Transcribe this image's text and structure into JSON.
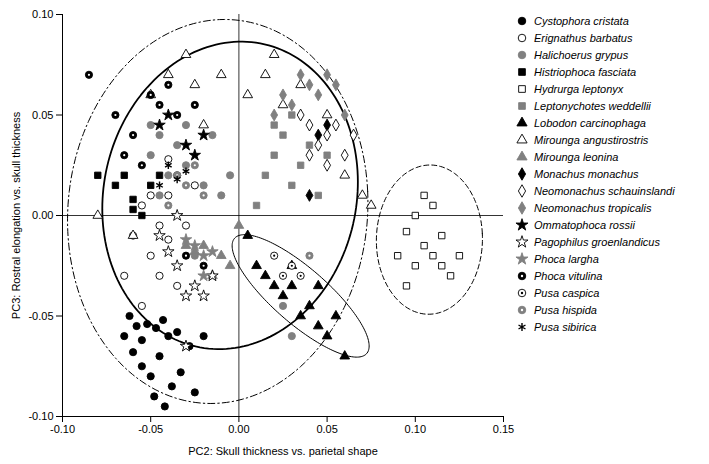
{
  "chart_data": {
    "type": "scatter",
    "x_label": "PC2: Skull thickness vs. parietal shape",
    "y_label": "PC3: Rostral elongation vs. skull thickness",
    "xlim": [
      -0.1,
      0.15
    ],
    "ylim": [
      -0.1,
      0.1
    ],
    "xticks": [
      {
        "value": -0.1,
        "label": "-0.10"
      },
      {
        "value": -0.05,
        "label": "-0.05"
      },
      {
        "value": 0,
        "label": "0.00"
      },
      {
        "value": 0.05,
        "label": "0.05"
      },
      {
        "value": 0.1,
        "label": "0.10"
      },
      {
        "value": 0.15,
        "label": "0.15"
      }
    ],
    "yticks": [
      {
        "value": -0.1,
        "label": "-0.10"
      },
      {
        "value": -0.05,
        "label": "-0.05"
      },
      {
        "value": 0,
        "label": "0.00"
      },
      {
        "value": 0.05,
        "label": "0.05"
      },
      {
        "value": 0.1,
        "label": "0.10"
      }
    ],
    "grid": false,
    "legend": "right",
    "series": [
      {
        "name": "Cystophora cristata",
        "marker": "circle",
        "color": "#000000",
        "x": [
          -0.062,
          -0.058,
          -0.052,
          -0.047,
          -0.043,
          -0.04,
          -0.035,
          -0.06,
          -0.055,
          -0.05,
          -0.045,
          -0.048,
          -0.042,
          -0.038,
          -0.033,
          -0.028,
          -0.025,
          -0.02,
          -0.055,
          -0.065
        ],
        "y": [
          -0.05,
          -0.055,
          -0.054,
          -0.056,
          -0.052,
          -0.06,
          -0.058,
          -0.068,
          -0.075,
          -0.08,
          -0.07,
          -0.09,
          -0.095,
          -0.085,
          -0.078,
          -0.065,
          -0.088,
          -0.06,
          -0.062,
          -0.06
        ]
      },
      {
        "name": "Erignathus barbatus",
        "marker": "open-circle",
        "color": "#000000",
        "x": [
          -0.06,
          -0.055,
          -0.05,
          -0.045,
          -0.04,
          -0.035,
          -0.03,
          -0.055,
          -0.045,
          -0.04,
          -0.025,
          -0.05,
          -0.065,
          -0.035,
          -0.04
        ],
        "y": [
          -0.01,
          0.005,
          -0.02,
          -0.03,
          -0.012,
          0.02,
          -0.005,
          -0.045,
          -0.005,
          0.028,
          0.015,
          0.01,
          -0.03,
          -0.035,
          0.01
        ]
      },
      {
        "name": "Halichoerus grypus",
        "marker": "circle",
        "color": "#808080",
        "x": [
          -0.05,
          -0.045,
          -0.04,
          -0.035,
          -0.03,
          -0.02,
          -0.015,
          -0.025,
          -0.01,
          0.025,
          0.03,
          -0.045,
          -0.05,
          -0.03,
          -0.005
        ],
        "y": [
          0.03,
          0.04,
          0.02,
          0.035,
          0.025,
          0.015,
          0.04,
          -0.02,
          0.01,
          -0.045,
          -0.06,
          0.01,
          0.045,
          0.045,
          0.02
        ]
      },
      {
        "name": "Histriophoca fasciata",
        "marker": "square",
        "color": "#000000",
        "x": [
          -0.07,
          -0.065,
          -0.06,
          -0.055,
          -0.05,
          -0.08,
          -0.045,
          -0.06
        ],
        "y": [
          0.015,
          0.02,
          0.003,
          0.0,
          0.015,
          0.02,
          0.02,
          0.008
        ]
      },
      {
        "name": "Hydrurga leptonyx",
        "marker": "open-square",
        "color": "#000000",
        "x": [
          0.09,
          0.095,
          0.1,
          0.105,
          0.11,
          0.11,
          0.115,
          0.12,
          0.125,
          0.1,
          0.105,
          0.115,
          0.095
        ],
        "y": [
          -0.02,
          -0.008,
          0.0,
          -0.015,
          -0.02,
          0.005,
          -0.01,
          -0.03,
          -0.02,
          -0.025,
          0.01,
          -0.025,
          -0.035
        ]
      },
      {
        "name": "Leptonychotes weddellii",
        "marker": "square",
        "color": "#808080",
        "x": [
          0.015,
          0.02,
          0.025,
          0.03,
          0.035,
          0.04,
          0.045,
          0.02,
          0.05,
          0.01,
          0.03
        ],
        "y": [
          0.02,
          0.03,
          0.04,
          0.015,
          0.025,
          0.035,
          0.01,
          0.045,
          0.03,
          0.005,
          0.05
        ]
      },
      {
        "name": "Lobodon carcinophaga",
        "marker": "triangle",
        "color": "#000000",
        "x": [
          0.005,
          0.01,
          0.015,
          0.02,
          0.025,
          0.03,
          0.035,
          0.04,
          0.045,
          0.05,
          0.055,
          0.06,
          0.045,
          0.03
        ],
        "y": [
          -0.01,
          -0.025,
          -0.03,
          -0.035,
          -0.04,
          -0.035,
          -0.05,
          -0.045,
          -0.055,
          -0.06,
          -0.05,
          -0.07,
          -0.035,
          -0.025
        ]
      },
      {
        "name": "Mirounga angustirostris",
        "marker": "open-triangle",
        "color": "#000000",
        "x": [
          -0.05,
          -0.04,
          -0.025,
          -0.01,
          0.005,
          0.015,
          0.025,
          -0.02,
          0.035,
          0.05,
          0.06,
          0.07,
          0.075,
          -0.06,
          -0.08,
          0.02,
          -0.03
        ],
        "y": [
          0.06,
          0.07,
          0.065,
          0.07,
          0.06,
          0.07,
          0.055,
          0.045,
          0.065,
          0.05,
          0.02,
          0.01,
          0.005,
          -0.01,
          0.0,
          0.08,
          0.08
        ]
      },
      {
        "name": "Mirounga leonina",
        "marker": "triangle",
        "color": "#808080",
        "x": [
          -0.03,
          -0.025,
          -0.02,
          -0.015,
          -0.01,
          0.0,
          -0.005
        ],
        "y": [
          -0.015,
          -0.018,
          -0.015,
          -0.03,
          -0.02,
          -0.005,
          -0.025
        ]
      },
      {
        "name": "Monachus monachus",
        "marker": "diamond",
        "color": "#000000",
        "x": [
          0.04,
          0.045,
          0.05
        ],
        "y": [
          0.01,
          0.04,
          0.045
        ]
      },
      {
        "name": "Neomonachus schauinslandi",
        "marker": "open-diamond",
        "color": "#000000",
        "x": [
          0.035,
          0.04,
          0.045,
          0.05,
          0.055,
          0.06,
          0.05,
          0.065,
          0.04
        ],
        "y": [
          0.05,
          0.045,
          0.035,
          0.04,
          0.045,
          0.03,
          0.025,
          0.04,
          0.03
        ]
      },
      {
        "name": "Neomonachus tropicalis",
        "marker": "diamond",
        "color": "#808080",
        "x": [
          0.02,
          0.025,
          0.03,
          0.035,
          0.045,
          0.05,
          0.055,
          0.06,
          0.04
        ],
        "y": [
          0.05,
          0.06,
          0.055,
          0.07,
          0.06,
          0.07,
          0.065,
          0.05,
          0.065
        ]
      },
      {
        "name": "Ommatophoca rossii",
        "marker": "star",
        "color": "#000000",
        "x": [
          -0.04,
          -0.03,
          -0.025,
          -0.02,
          -0.045
        ],
        "y": [
          0.05,
          0.035,
          0.03,
          0.04,
          0.045
        ]
      },
      {
        "name": "Pagophilus groenlandicus",
        "marker": "open-star",
        "color": "#000000",
        "x": [
          -0.045,
          -0.04,
          -0.035,
          -0.03,
          -0.025,
          -0.02,
          -0.015,
          -0.03,
          -0.035
        ],
        "y": [
          -0.01,
          -0.018,
          -0.025,
          -0.04,
          -0.035,
          -0.04,
          -0.03,
          -0.065,
          0.0
        ]
      },
      {
        "name": "Phoca largha",
        "marker": "star",
        "color": "#808080",
        "x": [
          -0.03,
          -0.025,
          -0.02,
          -0.015,
          -0.02
        ],
        "y": [
          -0.012,
          -0.015,
          -0.02,
          -0.018,
          -0.03
        ]
      },
      {
        "name": "Phoca vitulina",
        "marker": "dotted-circle",
        "color": "#000000",
        "x": [
          -0.085,
          -0.07,
          -0.06,
          -0.055,
          -0.05,
          -0.045,
          -0.04,
          -0.035,
          -0.025,
          -0.03,
          -0.02,
          -0.065
        ],
        "y": [
          0.07,
          0.05,
          0.04,
          0.025,
          0.06,
          0.055,
          0.065,
          0.05,
          0.055,
          -0.02,
          -0.025,
          0.03
        ]
      },
      {
        "name": "Pusa caspica",
        "marker": "dotted-open-circle",
        "color": "#000000",
        "x": [
          0.02,
          0.025,
          0.03,
          0.035
        ],
        "y": [
          -0.02,
          -0.03,
          -0.025,
          -0.03
        ]
      },
      {
        "name": "Pusa hispida",
        "marker": "dotted-circle",
        "color": "#808080",
        "x": [
          -0.035,
          -0.03,
          -0.025,
          -0.02,
          0.04,
          -0.04
        ],
        "y": [
          0.02,
          0.015,
          0.025,
          0.01,
          -0.02,
          0.005
        ]
      },
      {
        "name": "Pusa sibirica",
        "marker": "asterisk",
        "color": "#000000",
        "x": [
          -0.04,
          -0.035,
          -0.03,
          -0.045
        ],
        "y": [
          0.025,
          0.018,
          0.022,
          0.015
        ]
      }
    ],
    "ellipses": [
      {
        "line_style": "dashdot",
        "center": [
          -0.012,
          0.002
        ],
        "axis_a": [
          0.085,
          0.01
        ],
        "axis_b": [
          -0.005,
          0.095
        ]
      },
      {
        "line_style": "solid",
        "center": [
          -0.005,
          0.01
        ],
        "axis_a": [
          0.072,
          0.015
        ],
        "axis_b": [
          -0.008,
          0.075
        ]
      },
      {
        "line_style": "solid",
        "center": [
          0.035,
          -0.04
        ],
        "axis_a": [
          0.038,
          -0.028
        ],
        "axis_b": [
          0.008,
          0.012
        ]
      },
      {
        "line_style": "dashed",
        "center": [
          0.108,
          -0.012
        ],
        "axis_a": [
          0.03,
          0.003
        ],
        "axis_b": [
          -0.002,
          0.037
        ]
      }
    ]
  }
}
